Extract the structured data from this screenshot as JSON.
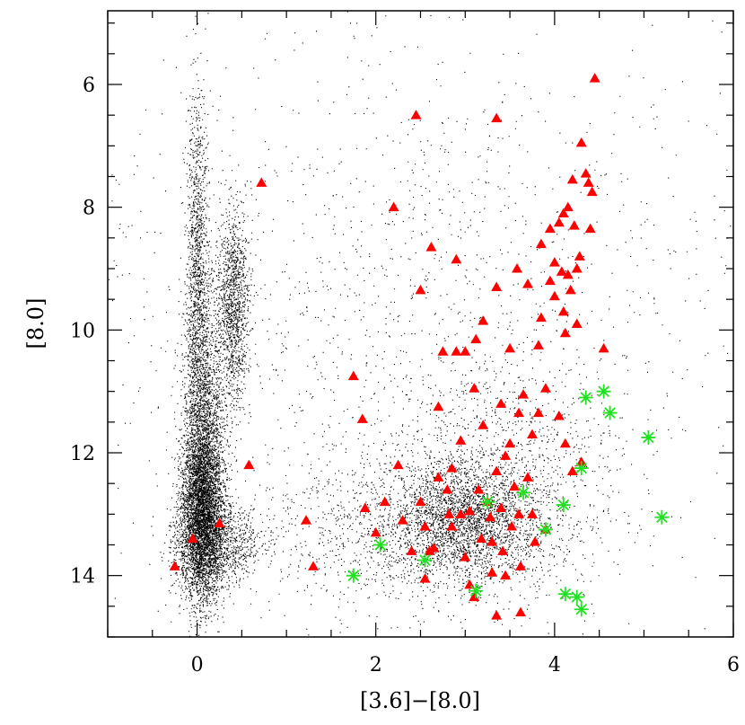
{
  "chart_data": {
    "type": "scatter",
    "xlabel": "[3.6]−[8.0]",
    "ylabel": "[8.0]",
    "xlim": [
      -1,
      6
    ],
    "ylim": [
      15,
      4.8
    ],
    "y_inverted": true,
    "x_ticks": [
      0,
      2,
      4,
      6
    ],
    "y_ticks": [
      6,
      8,
      10,
      12,
      14
    ],
    "minor_tick_step_x": 0.5,
    "minor_tick_step_y": 0.5,
    "grid": false,
    "legend": "none",
    "background_population": {
      "marker": "dot",
      "color": "#000000",
      "regions": [
        {
          "x": 0.05,
          "y": 13.0,
          "sx": 0.12,
          "sy": 0.7,
          "weight": 0.27
        },
        {
          "x": 0.08,
          "y": 11.5,
          "sx": 0.12,
          "sy": 1.0,
          "weight": 0.12
        },
        {
          "x": 0.0,
          "y": 9.0,
          "sx": 0.06,
          "sy": 1.4,
          "weight": 0.08
        },
        {
          "x": 0.4,
          "y": 9.6,
          "sx": 0.09,
          "sy": 0.8,
          "weight": 0.08
        },
        {
          "x": 0.2,
          "y": 13.5,
          "sx": 0.25,
          "sy": 0.35,
          "weight": 0.07
        },
        {
          "x": 3.0,
          "y": 13.05,
          "sx": 0.4,
          "sy": 0.45,
          "weight": 0.13
        },
        {
          "x": 2.6,
          "y": 13.3,
          "sx": 0.9,
          "sy": 0.6,
          "weight": 0.1
        },
        {
          "x": 3.3,
          "y": 12.0,
          "sx": 0.7,
          "sy": 0.9,
          "weight": 0.05
        },
        {
          "x": 2.3,
          "y": 9.5,
          "sx": 1.6,
          "sy": 2.2,
          "weight": 0.06
        },
        {
          "x": 2.5,
          "y": 9.8,
          "sx": 2.5,
          "sy": 2.8,
          "weight": 0.04
        }
      ]
    },
    "series": [
      {
        "marker": "triangle",
        "color": "#ff0000",
        "points": [
          [
            -0.25,
            13.85
          ],
          [
            -0.05,
            13.4
          ],
          [
            0.25,
            13.15
          ],
          [
            0.58,
            12.2
          ],
          [
            0.72,
            7.6
          ],
          [
            1.22,
            13.1
          ],
          [
            1.3,
            13.85
          ],
          [
            1.75,
            10.75
          ],
          [
            1.85,
            11.45
          ],
          [
            1.88,
            12.9
          ],
          [
            2.0,
            13.3
          ],
          [
            2.1,
            12.8
          ],
          [
            2.2,
            8.0
          ],
          [
            2.25,
            12.2
          ],
          [
            2.3,
            13.1
          ],
          [
            2.4,
            13.6
          ],
          [
            2.45,
            6.5
          ],
          [
            2.5,
            9.35
          ],
          [
            2.5,
            12.8
          ],
          [
            2.55,
            13.2
          ],
          [
            2.6,
            13.6
          ],
          [
            2.55,
            14.05
          ],
          [
            2.62,
            8.65
          ],
          [
            2.65,
            13.55
          ],
          [
            2.7,
            11.25
          ],
          [
            2.7,
            12.4
          ],
          [
            2.75,
            10.35
          ],
          [
            2.8,
            12.6
          ],
          [
            2.82,
            13.0
          ],
          [
            2.85,
            12.25
          ],
          [
            2.9,
            8.85
          ],
          [
            2.9,
            10.35
          ],
          [
            2.95,
            13.0
          ],
          [
            2.95,
            11.8
          ],
          [
            3.0,
            10.35
          ],
          [
            3.0,
            13.7
          ],
          [
            3.05,
            14.15
          ],
          [
            3.1,
            10.95
          ],
          [
            3.1,
            14.35
          ],
          [
            3.12,
            10.15
          ],
          [
            3.15,
            12.6
          ],
          [
            3.18,
            13.4
          ],
          [
            3.2,
            9.85
          ],
          [
            3.2,
            11.55
          ],
          [
            3.25,
            12.8
          ],
          [
            3.28,
            13.05
          ],
          [
            3.3,
            13.45
          ],
          [
            3.35,
            6.55
          ],
          [
            3.35,
            9.3
          ],
          [
            3.35,
            12.3
          ],
          [
            3.4,
            11.2
          ],
          [
            3.4,
            12.9
          ],
          [
            3.42,
            13.6
          ],
          [
            3.45,
            14.0
          ],
          [
            3.5,
            10.3
          ],
          [
            3.5,
            11.85
          ],
          [
            3.52,
            13.2
          ],
          [
            3.55,
            12.55
          ],
          [
            3.58,
            9.0
          ],
          [
            3.6,
            11.35
          ],
          [
            3.6,
            13.0
          ],
          [
            3.62,
            13.85
          ],
          [
            3.65,
            11.05
          ],
          [
            3.7,
            9.25
          ],
          [
            3.7,
            12.4
          ],
          [
            3.75,
            11.7
          ],
          [
            3.75,
            13.0
          ],
          [
            3.78,
            13.45
          ],
          [
            3.82,
            10.25
          ],
          [
            3.82,
            11.35
          ],
          [
            3.85,
            8.6
          ],
          [
            3.85,
            9.8
          ],
          [
            3.9,
            10.95
          ],
          [
            3.9,
            13.25
          ],
          [
            3.95,
            8.35
          ],
          [
            3.95,
            9.2
          ],
          [
            4.0,
            8.9
          ],
          [
            4.0,
            9.45
          ],
          [
            4.05,
            8.25
          ],
          [
            4.05,
            11.4
          ],
          [
            4.08,
            9.05
          ],
          [
            4.1,
            8.1
          ],
          [
            4.1,
            9.7
          ],
          [
            4.12,
            10.05
          ],
          [
            4.12,
            11.85
          ],
          [
            4.15,
            8.0
          ],
          [
            4.15,
            9.1
          ],
          [
            4.18,
            9.35
          ],
          [
            4.2,
            7.55
          ],
          [
            4.2,
            12.3
          ],
          [
            4.22,
            8.3
          ],
          [
            4.25,
            9.0
          ],
          [
            4.25,
            9.9
          ],
          [
            4.28,
            8.8
          ],
          [
            4.3,
            6.95
          ],
          [
            4.3,
            12.15
          ],
          [
            4.35,
            7.45
          ],
          [
            4.38,
            7.6
          ],
          [
            4.4,
            8.35
          ],
          [
            4.42,
            7.75
          ],
          [
            4.45,
            5.9
          ],
          [
            4.55,
            10.3
          ],
          [
            3.62,
            14.6
          ],
          [
            3.35,
            14.65
          ],
          [
            3.3,
            13.95
          ],
          [
            2.85,
            13.2
          ],
          [
            3.05,
            12.95
          ],
          [
            3.45,
            12.05
          ]
        ]
      },
      {
        "marker": "asterisk",
        "color": "#22e022",
        "points": [
          [
            1.75,
            14.0
          ],
          [
            2.05,
            13.5
          ],
          [
            2.55,
            13.75
          ],
          [
            3.12,
            14.25
          ],
          [
            3.25,
            12.8
          ],
          [
            3.65,
            12.65
          ],
          [
            3.9,
            13.25
          ],
          [
            4.1,
            12.85
          ],
          [
            4.12,
            14.3
          ],
          [
            4.25,
            14.35
          ],
          [
            4.3,
            14.55
          ],
          [
            4.3,
            12.25
          ],
          [
            4.35,
            11.1
          ],
          [
            4.55,
            11.0
          ],
          [
            4.62,
            11.35
          ],
          [
            5.05,
            11.75
          ],
          [
            5.2,
            13.05
          ]
        ]
      }
    ]
  }
}
